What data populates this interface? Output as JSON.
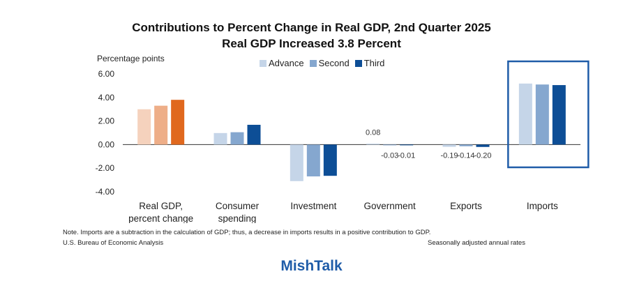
{
  "chart_data": {
    "type": "bar",
    "title": "Contributions to Percent Change in Real GDP, 2nd Quarter 2025",
    "subtitle": "Real GDP Increased 3.8 Percent",
    "ylabel": "Percentage points",
    "ylim": [
      -4,
      6
    ],
    "yticks": [
      "6.00",
      "4.00",
      "2.00",
      "0.00",
      "-2.00",
      "-4.00"
    ],
    "legend": "top-center",
    "categories": [
      [
        "Real GDP,",
        "percent change"
      ],
      [
        "Consumer",
        "spending"
      ],
      [
        "Investment"
      ],
      [
        "Government"
      ],
      [
        "Exports"
      ],
      [
        "Imports"
      ]
    ],
    "series": [
      {
        "name": "Advance",
        "values": [
          3.0,
          0.98,
          -3.1,
          0.08,
          -0.19,
          5.18
        ]
      },
      {
        "name": "Second",
        "values": [
          3.3,
          1.05,
          -2.7,
          -0.03,
          -0.14,
          5.1
        ]
      },
      {
        "name": "Third",
        "values": [
          3.8,
          1.68,
          -2.65,
          -0.01,
          -0.2,
          5.05
        ]
      }
    ],
    "data_labels": [
      {
        "category": 3,
        "series": 0,
        "text": "0.08"
      },
      {
        "category": 3,
        "series": 1,
        "text": "-0.03"
      },
      {
        "category": 3,
        "series": 2,
        "text": "-0.01"
      },
      {
        "category": 4,
        "series": 0,
        "text": "-0.19"
      },
      {
        "category": 4,
        "series": 1,
        "text": "-0.14"
      },
      {
        "category": 4,
        "series": 2,
        "text": "-0.20"
      }
    ],
    "highlight": "Imports"
  },
  "colors": {
    "advance": "#c5d5e8",
    "second": "#85a7cf",
    "third": "#0d4e96",
    "gdp_advance": "#f5d2bd",
    "gdp_second": "#eeae88",
    "gdp_third": "#e0681e",
    "highlight_box": "#1f5ca8",
    "brand": "#1f5ca8"
  },
  "notes": {
    "main": "Note. Imports are a subtraction in the calculation of GDP; thus, a decrease in imports results in a positive contribution to GDP.",
    "source": "U.S. Bureau of Economic Analysis",
    "rates": "Seasonally adjusted annual rates"
  },
  "brand": "MishTalk"
}
